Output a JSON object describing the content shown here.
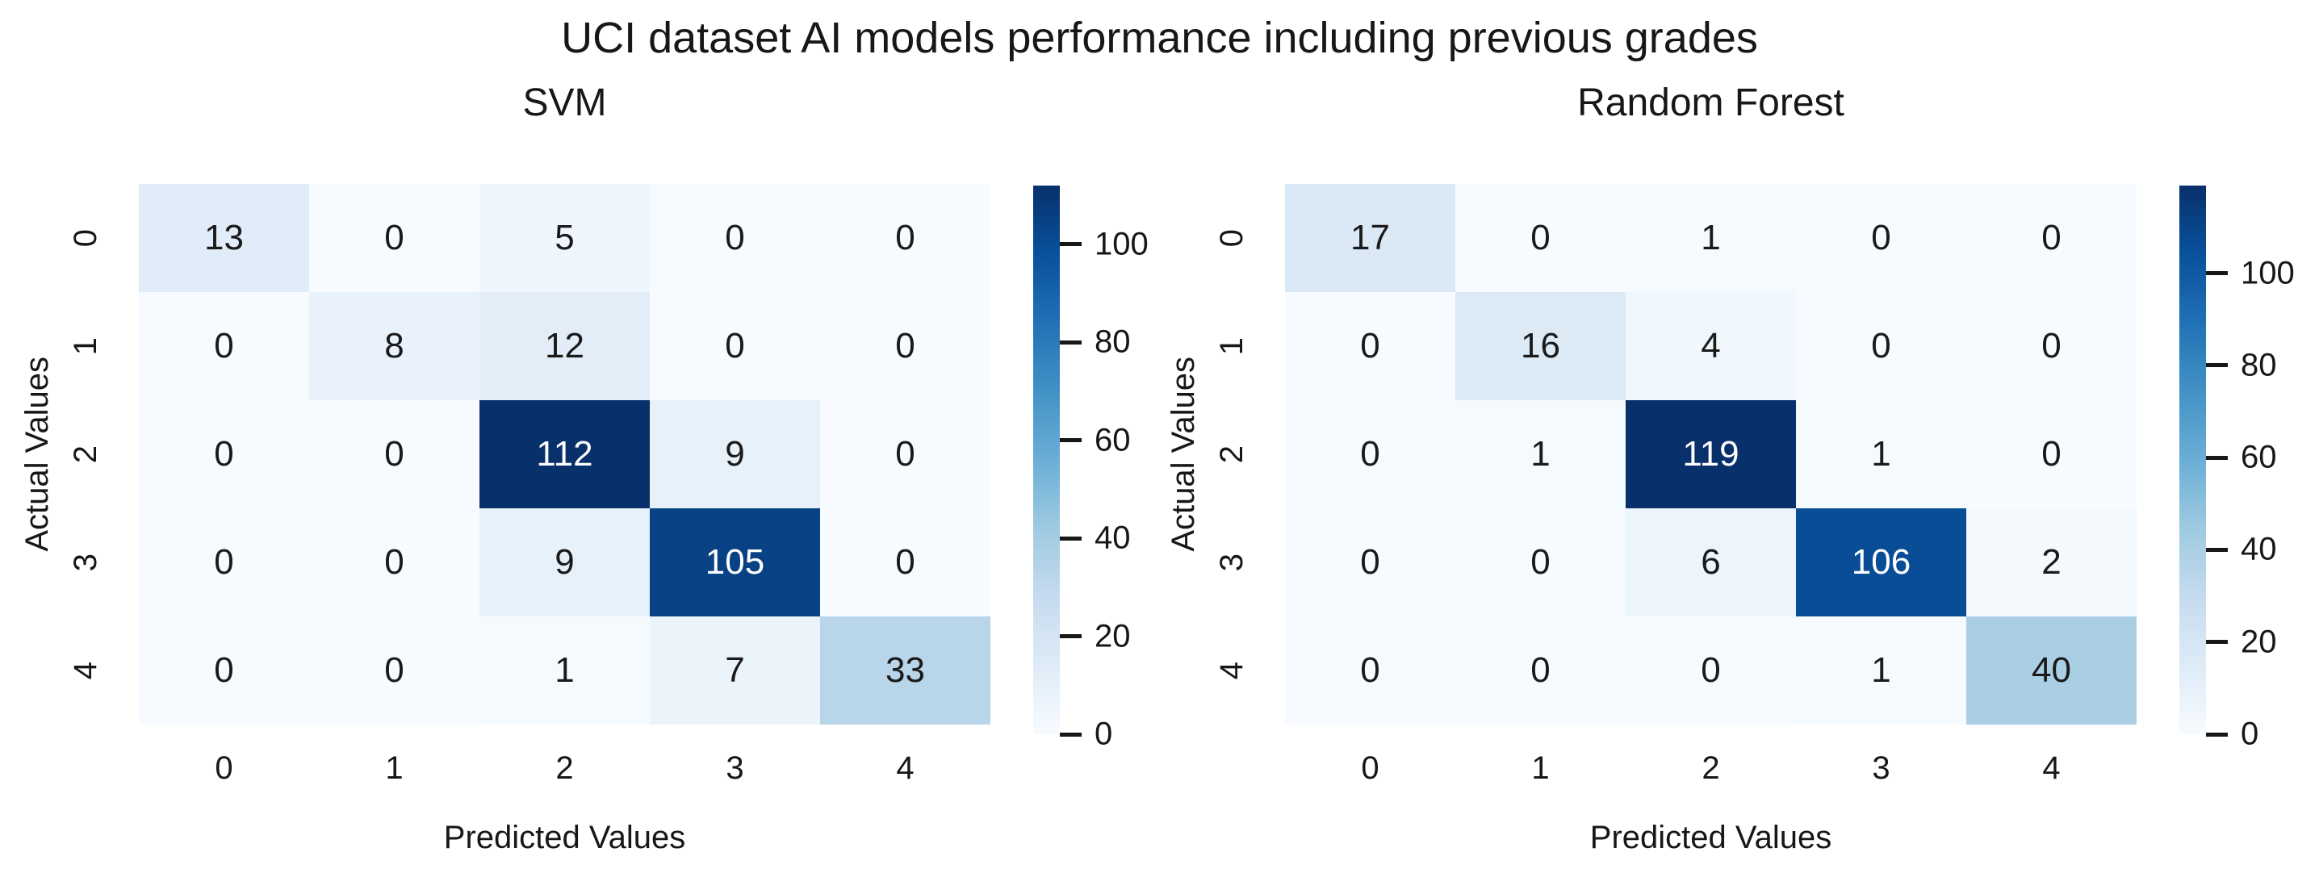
{
  "figure": {
    "title": "UCI dataset AI models performance including previous grades",
    "background_color": "#ffffff",
    "text_color": "#171717"
  },
  "colormap": {
    "name": "Blues",
    "stops": [
      "#f7fbff",
      "#deebf7",
      "#c6dbef",
      "#9ecae1",
      "#6baed6",
      "#4292c6",
      "#2171b5",
      "#08519c",
      "#08306b"
    ],
    "annotation_color_light_cells": "#1a1a1a",
    "annotation_color_dark_cells": "#ffffff"
  },
  "chart_data": [
    {
      "type": "heatmap",
      "title": "SVM",
      "xlabel": "Predicted Values",
      "ylabel": "Actual Values",
      "x_ticklabels": [
        "0",
        "1",
        "2",
        "3",
        "4"
      ],
      "y_ticklabels": [
        "0",
        "1",
        "2",
        "3",
        "4"
      ],
      "values": [
        [
          13,
          0,
          5,
          0,
          0
        ],
        [
          0,
          8,
          12,
          0,
          0
        ],
        [
          0,
          0,
          112,
          9,
          0
        ],
        [
          0,
          0,
          9,
          105,
          0
        ],
        [
          0,
          0,
          1,
          7,
          33
        ]
      ],
      "vmin": 0,
      "vmax": 112,
      "colorbar_ticks": [
        0,
        20,
        40,
        60,
        80,
        100
      ],
      "colormap": "Blues",
      "legend_position": "right-colorbar",
      "grid": false
    },
    {
      "type": "heatmap",
      "title": "Random Forest",
      "xlabel": "Predicted Values",
      "ylabel": "Actual Values",
      "x_ticklabels": [
        "0",
        "1",
        "2",
        "3",
        "4"
      ],
      "y_ticklabels": [
        "0",
        "1",
        "2",
        "3",
        "4"
      ],
      "values": [
        [
          17,
          0,
          1,
          0,
          0
        ],
        [
          0,
          16,
          4,
          0,
          0
        ],
        [
          0,
          1,
          119,
          1,
          0
        ],
        [
          0,
          0,
          6,
          106,
          2
        ],
        [
          0,
          0,
          0,
          1,
          40
        ]
      ],
      "vmin": 0,
      "vmax": 119,
      "colorbar_ticks": [
        0,
        20,
        40,
        60,
        80,
        100
      ],
      "colormap": "Blues",
      "legend_position": "right-colorbar",
      "grid": false
    }
  ]
}
